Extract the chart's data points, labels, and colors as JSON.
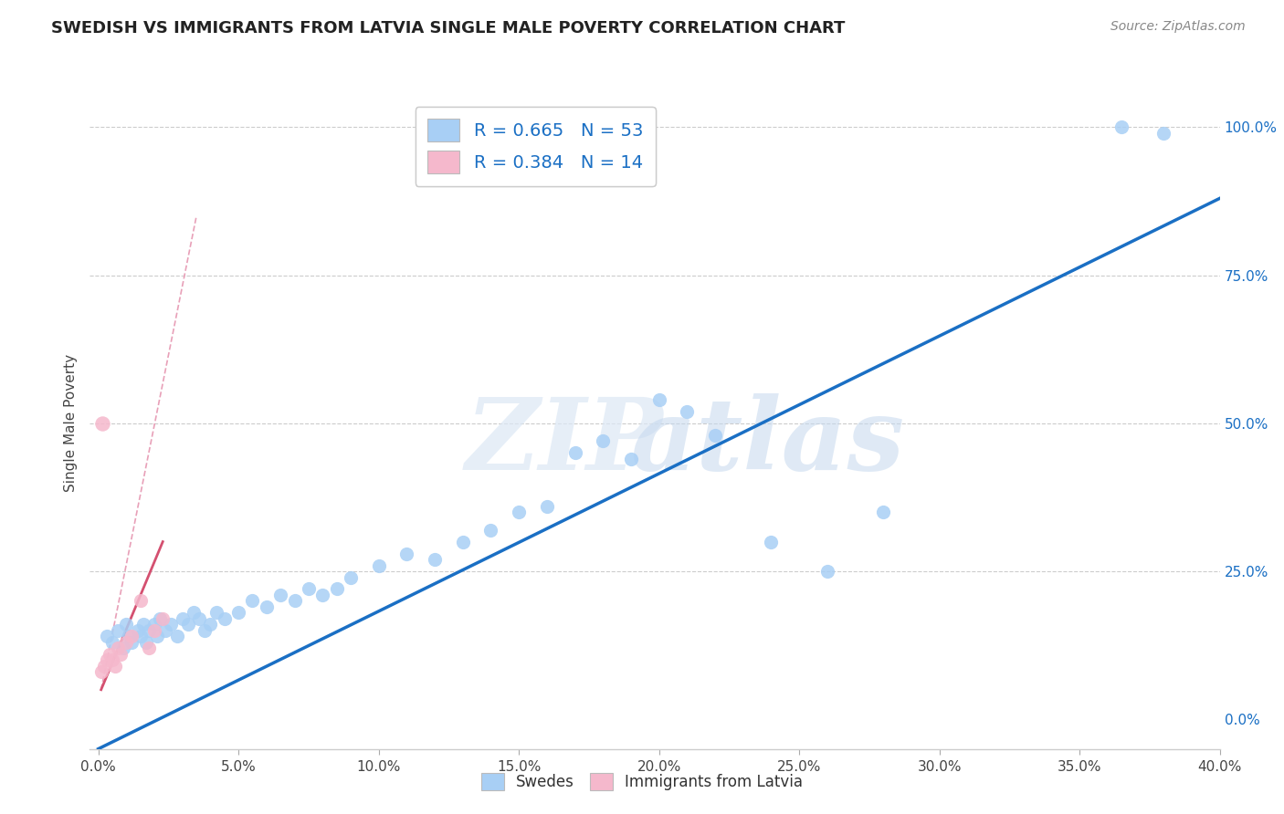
{
  "title": "SWEDISH VS IMMIGRANTS FROM LATVIA SINGLE MALE POVERTY CORRELATION CHART",
  "source": "Source: ZipAtlas.com",
  "xlabel_ticks": [
    "0.0%",
    "5.0%",
    "10.0%",
    "15.0%",
    "20.0%",
    "25.0%",
    "30.0%",
    "35.0%",
    "40.0%"
  ],
  "xlabel_vals": [
    0,
    5,
    10,
    15,
    20,
    25,
    30,
    35,
    40
  ],
  "ylabel_left": "Single Male Poverty",
  "ylabel_right_ticks": [
    "0.0%",
    "25.0%",
    "50.0%",
    "75.0%",
    "100.0%"
  ],
  "ylabel_right_vals": [
    0,
    25,
    50,
    75,
    100
  ],
  "xlim": [
    -0.3,
    40
  ],
  "ylim": [
    -5,
    105
  ],
  "blue_R": 0.665,
  "blue_N": 53,
  "pink_R": 0.384,
  "pink_N": 14,
  "blue_color": "#a8cff5",
  "pink_color": "#f5b8cc",
  "blue_line_color": "#1a6fc4",
  "pink_line_color": "#d45070",
  "pink_dash_color": "#e8a0b8",
  "legend_label_blue": "Swedes",
  "legend_label_pink": "Immigrants from Latvia",
  "blue_scatter_x": [
    0.3,
    0.5,
    0.7,
    0.9,
    1.0,
    1.1,
    1.2,
    1.4,
    1.5,
    1.6,
    1.7,
    1.8,
    2.0,
    2.1,
    2.2,
    2.4,
    2.6,
    2.8,
    3.0,
    3.2,
    3.4,
    3.6,
    3.8,
    4.0,
    4.2,
    4.5,
    5.0,
    5.5,
    6.0,
    6.5,
    7.0,
    7.5,
    8.0,
    8.5,
    9.0,
    10.0,
    11.0,
    12.0,
    13.0,
    14.0,
    15.0,
    16.0,
    17.0,
    18.0,
    19.0,
    20.0,
    21.0,
    22.0,
    24.0,
    26.0,
    28.0,
    36.5,
    38.0
  ],
  "blue_scatter_y": [
    14,
    13,
    15,
    12,
    16,
    14,
    13,
    15,
    14,
    16,
    13,
    15,
    16,
    14,
    17,
    15,
    16,
    14,
    17,
    16,
    18,
    17,
    15,
    16,
    18,
    17,
    18,
    20,
    19,
    21,
    20,
    22,
    21,
    22,
    24,
    26,
    28,
    27,
    30,
    32,
    35,
    36,
    45,
    47,
    44,
    54,
    52,
    48,
    30,
    25,
    35,
    100,
    99
  ],
  "pink_scatter_x": [
    0.1,
    0.2,
    0.3,
    0.4,
    0.5,
    0.6,
    0.7,
    0.8,
    1.0,
    1.2,
    1.5,
    1.8,
    2.0,
    2.3
  ],
  "pink_scatter_y": [
    8,
    9,
    10,
    11,
    10,
    9,
    12,
    11,
    13,
    14,
    20,
    12,
    15,
    17
  ],
  "pink_outlier_x": [
    0.15
  ],
  "pink_outlier_y": [
    50
  ],
  "blue_line_x": [
    0,
    40
  ],
  "blue_line_y": [
    -5,
    88
  ],
  "pink_solid_line_x": [
    0.1,
    2.3
  ],
  "pink_solid_line_y": [
    5,
    30
  ],
  "pink_dash_line_x": [
    0.1,
    3.5
  ],
  "pink_dash_line_y": [
    5,
    85
  ]
}
